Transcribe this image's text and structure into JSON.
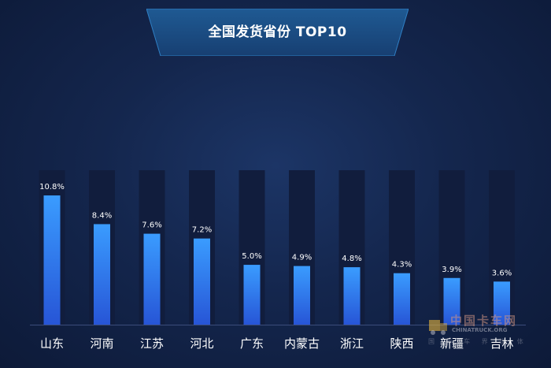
{
  "chart_data": {
    "type": "bar",
    "title": "全国发货省份 TOP10",
    "categories": [
      "山东",
      "河南",
      "江苏",
      "河北",
      "广东",
      "内蒙古",
      "浙江",
      "陕西",
      "新疆",
      "吉林"
    ],
    "values": [
      10.8,
      8.4,
      7.6,
      7.2,
      5.0,
      4.9,
      4.8,
      4.3,
      3.9,
      3.6
    ],
    "value_labels": [
      "10.8%",
      "8.4%",
      "7.6%",
      "7.2%",
      "5.0%",
      "4.9%",
      "4.8%",
      "4.3%",
      "3.9%",
      "3.6%"
    ],
    "ylim": [
      0,
      12
    ],
    "grid": false,
    "legend": "none",
    "colors": {
      "bar_top": "#3a9cff",
      "bar_bottom": "#2755d6",
      "track": "#111d3d",
      "axis": "#3b4c7a",
      "label": "#ffffff",
      "banner": "#1d4f86"
    }
  },
  "watermark": {
    "cn": "中国卡车网",
    "en": "CHINATRUCK.ORG",
    "sub": "国 卡 车 界 媒 体"
  }
}
